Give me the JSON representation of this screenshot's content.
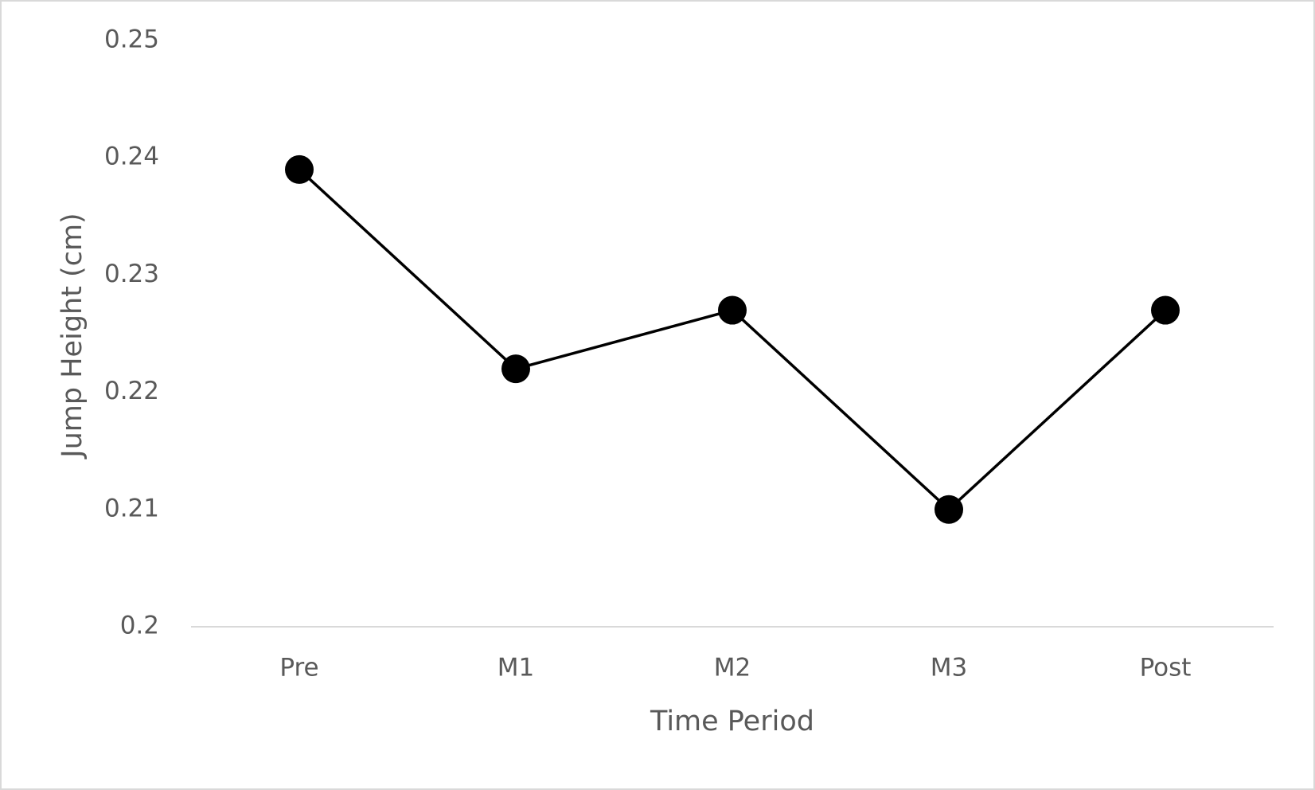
{
  "chart_data": {
    "type": "line",
    "x_label": "Time Period",
    "y_label": "Jump Height (cm)",
    "categories": [
      "Pre",
      "M1",
      "M2",
      "M3",
      "Post"
    ],
    "series": [
      {
        "name": "Jump Height",
        "color": "#000000",
        "values": [
          0.239,
          0.222,
          0.227,
          0.21,
          0.227
        ]
      }
    ],
    "ylim": [
      0.2,
      0.25
    ],
    "yticks": [
      0.2,
      0.21,
      0.22,
      0.23,
      0.24,
      0.25
    ],
    "grid": false,
    "markers": true
  }
}
